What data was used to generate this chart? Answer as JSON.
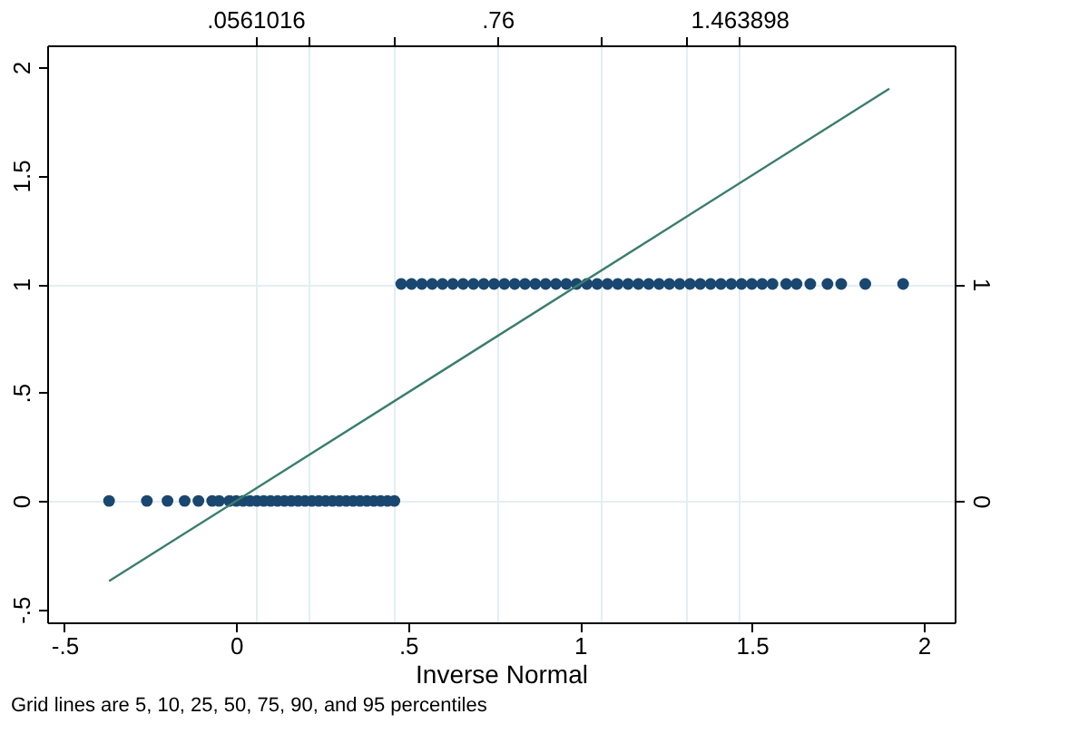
{
  "chart_data": {
    "type": "scatter",
    "xlabel": "Inverse Normal",
    "annotations": [
      "Grid lines are 5, 10, 25, 50, 75, 90, and 95 percentiles"
    ],
    "xlim": [
      -0.55,
      2.09
    ],
    "xticks": [
      {
        "value": -0.5,
        "label": "-.5"
      },
      0,
      {
        "value": 0.5,
        "label": ".5"
      },
      1,
      1.5,
      2
    ],
    "x2lim": [
      -0.55,
      2.09
    ],
    "x2ticks": [
      {
        "value": 0.0561016,
        "label": ".0561016"
      },
      {
        "value": 0.21,
        "label": null
      },
      {
        "value": 0.46,
        "label": null
      },
      {
        "value": 0.76,
        "label": ".76"
      },
      {
        "value": 1.06,
        "label": null
      },
      {
        "value": 1.31,
        "label": null
      },
      {
        "value": 1.463898,
        "label": "1.463898"
      }
    ],
    "ylim": [
      -0.56,
      2.1
    ],
    "yticks": [
      {
        "value": -0.5,
        "label": "-.5"
      },
      0,
      {
        "value": 0.5,
        "label": ".5"
      },
      1,
      1.5,
      2
    ],
    "y2lim": [
      -0.56,
      2.1
    ],
    "y2ticks": [
      0,
      1
    ],
    "grid": "x2y2",
    "marker": "circle",
    "series": [
      {
        "color": "#1a476f",
        "x": [
          -0.37,
          -0.26,
          -0.2,
          -0.15,
          -0.11,
          -0.07,
          -0.05,
          -0.02,
          0.0,
          0.02,
          0.04,
          0.06,
          0.08,
          0.1,
          0.12,
          0.14,
          0.16,
          0.18,
          0.2,
          0.22,
          0.24,
          0.26,
          0.28,
          0.3,
          0.32,
          0.34,
          0.36,
          0.38,
          0.4,
          0.42,
          0.44,
          0.46,
          0.48,
          0.51,
          0.54,
          0.57,
          0.6,
          0.63,
          0.66,
          0.69,
          0.72,
          0.75,
          0.78,
          0.81,
          0.84,
          0.87,
          0.9,
          0.93,
          0.96,
          0.99,
          1.02,
          1.05,
          1.08,
          1.11,
          1.14,
          1.17,
          1.2,
          1.23,
          1.26,
          1.29,
          1.32,
          1.35,
          1.38,
          1.41,
          1.44,
          1.47,
          1.5,
          1.53,
          1.56,
          1.6,
          1.63,
          1.67,
          1.72,
          1.76,
          1.83,
          1.94
        ],
        "values": [
          0,
          0,
          0,
          0,
          0,
          0,
          0,
          0,
          0,
          0,
          0,
          0,
          0,
          0,
          0,
          0,
          0,
          0,
          0,
          0,
          0,
          0,
          0,
          0,
          0,
          0,
          0,
          0,
          0,
          0,
          0,
          0,
          1,
          1,
          1,
          1,
          1,
          1,
          1,
          1,
          1,
          1,
          1,
          1,
          1,
          1,
          1,
          1,
          1,
          1,
          1,
          1,
          1,
          1,
          1,
          1,
          1,
          1,
          1,
          1,
          1,
          1,
          1,
          1,
          1,
          1,
          1,
          1,
          1,
          1,
          1,
          1,
          1,
          1,
          1,
          1
        ]
      },
      {
        "type": "line",
        "marker": "none",
        "color": "#3a7d6c",
        "x": [
          -0.37,
          1.9
        ],
        "values": [
          -0.37,
          1.9
        ]
      }
    ]
  }
}
